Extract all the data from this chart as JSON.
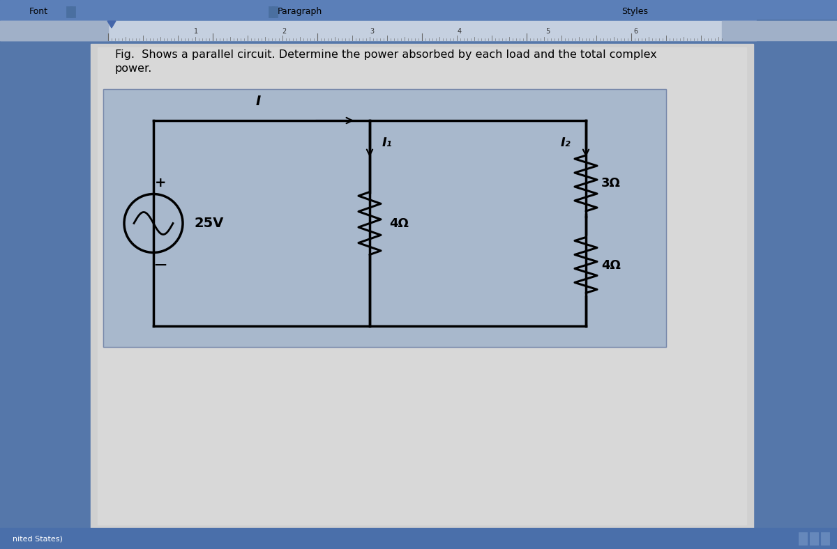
{
  "bg_color": "#5577aa",
  "toolbar_color": "#6688bb",
  "ruler_color": "#d0d8e8",
  "page_color": "#d8d8d8",
  "circuit_bg": "#a8b8cc",
  "title_text": "Font",
  "paragraph_text": "Paragraph",
  "styles_text": "Styles",
  "fig_text_line1": "Fig.  Shows a parallel circuit. Determine the power absorbed by each load and the total complex",
  "fig_text_line2": "power.",
  "source_label": "25V",
  "r1_label": "4Ω",
  "r2_label": "3Ω",
  "r3_label": "4Ω",
  "i_label": "I",
  "i1_label": "I₁",
  "i2_label": "I₂",
  "plus_label": "+",
  "minus_label": "−",
  "bottom_bar_color": "#4466aa",
  "status_text": "nited States)"
}
